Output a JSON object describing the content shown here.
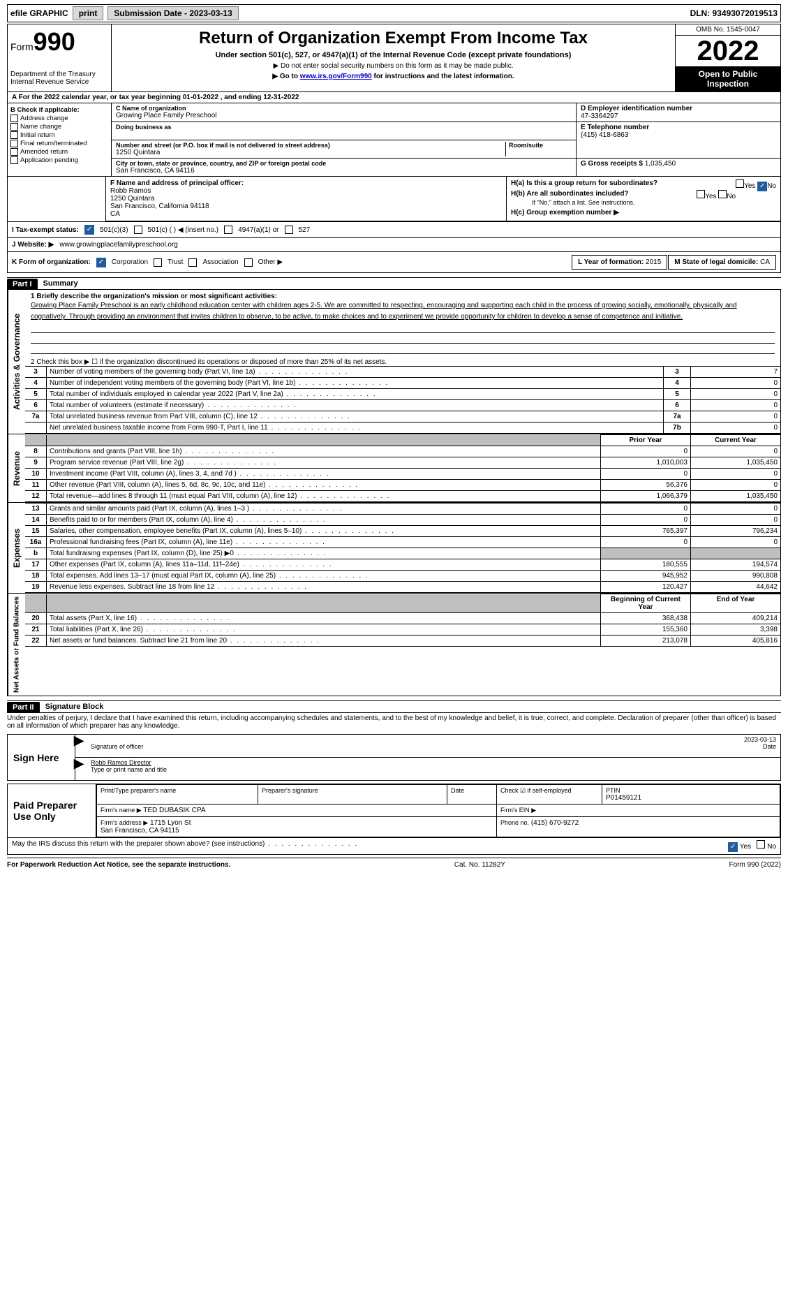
{
  "colors": {
    "button_bg": "#d9d9d9",
    "black": "#000000",
    "link": "#0000cc",
    "checked_blue": "#225c9d",
    "shade": "#bfbfbf"
  },
  "topbar": {
    "efile": "efile GRAPHIC",
    "print": "print",
    "submission_label": "Submission Date - 2023-03-13",
    "dln": "DLN: 93493072019513"
  },
  "header": {
    "form_prefix": "Form",
    "form_number": "990",
    "dept": "Department of the Treasury\nInternal Revenue Service",
    "title": "Return of Organization Exempt From Income Tax",
    "subtitle": "Under section 501(c), 527, or 4947(a)(1) of the Internal Revenue Code (except private foundations)",
    "note1": "▶ Do not enter social security numbers on this form as it may be made public.",
    "note2_pre": "▶ Go to ",
    "note2_link": "www.irs.gov/Form990",
    "note2_post": " for instructions and the latest information.",
    "omb": "OMB No. 1545-0047",
    "year": "2022",
    "open": "Open to Public Inspection"
  },
  "A": {
    "text": "A For the 2022 calendar year, or tax year beginning 01-01-2022   , and ending 12-31-2022"
  },
  "B": {
    "label": "B Check if applicable:",
    "items": [
      "Address change",
      "Name change",
      "Initial return",
      "Final return/terminated",
      "Amended return",
      "Application pending"
    ]
  },
  "C": {
    "name_lbl": "C Name of organization",
    "name": "Growing Place Family Preschool",
    "dba_lbl": "Doing business as",
    "dba": "",
    "addr_lbl": "Number and street (or P.O. box if mail is not delivered to street address)",
    "addr": "1250 Quintara",
    "room_lbl": "Room/suite",
    "city_lbl": "City or town, state or province, country, and ZIP or foreign postal code",
    "city": "San Francisco, CA  94116"
  },
  "D": {
    "lbl": "D Employer identification number",
    "val": "47-3364297"
  },
  "E": {
    "lbl": "E Telephone number",
    "val": "(415) 418-6863"
  },
  "G": {
    "lbl": "G Gross receipts $",
    "val": "1,035,450"
  },
  "F": {
    "lbl": "F  Name and address of principal officer:",
    "name": "Robb Ramos",
    "addr1": "1250 Quintara",
    "addr2": "San Francisco, California  94118",
    "addr3": "CA"
  },
  "H": {
    "a_lbl": "H(a)  Is this a group return for subordinates?",
    "a_no_checked": true,
    "b_lbl": "H(b)  Are all subordinates included?",
    "b_note": "If \"No,\" attach a list. See instructions.",
    "c_lbl": "H(c)  Group exemption number ▶"
  },
  "I": {
    "lbl": "I   Tax-exempt status:",
    "c3_checked": true,
    "opts": [
      "501(c)(3)",
      "501(c) (  ) ◀ (insert no.)",
      "4947(a)(1) or",
      "527"
    ]
  },
  "J": {
    "lbl": "J   Website: ▶",
    "val": "www.growingplacefamilypreschool.org"
  },
  "K": {
    "lbl": "K Form of organization:",
    "opts": [
      "Corporation",
      "Trust",
      "Association",
      "Other ▶"
    ],
    "corp_checked": true,
    "L_lbl": "L Year of formation: ",
    "L_val": "2015",
    "M_lbl": "M State of legal domicile: ",
    "M_val": "CA"
  },
  "partI": {
    "hdr": "Part I",
    "title": "Summary",
    "mission_lbl": "1  Briefly describe the organization's mission or most significant activities:",
    "mission": "Growing Place Family Preschool is an early childhood education center with children ages 2-5. We are committed to respecting, encouraging and supporting each child in the process of growing socially, emotionally, physically and cognatively. Through providing an environment that invites children to observe, to be active, to make choices and to experiment we provide opportunity for children to develop a sense of competence and initiative.",
    "line2": "2  Check this box ▶ ☐ if the organization discontinued its operations or disposed of more than 25% of its net assets.",
    "vert_gov": "Activities & Governance",
    "vert_rev": "Revenue",
    "vert_exp": "Expenses",
    "vert_net": "Net Assets or Fund Balances",
    "rows_gov": [
      {
        "n": "3",
        "d": "Number of voting members of the governing body (Part VI, line 1a)",
        "box": "3",
        "v": "7"
      },
      {
        "n": "4",
        "d": "Number of independent voting members of the governing body (Part VI, line 1b)",
        "box": "4",
        "v": "0"
      },
      {
        "n": "5",
        "d": "Total number of individuals employed in calendar year 2022 (Part V, line 2a)",
        "box": "5",
        "v": "0"
      },
      {
        "n": "6",
        "d": "Total number of volunteers (estimate if necessary)",
        "box": "6",
        "v": "0"
      },
      {
        "n": "7a",
        "d": "Total unrelated business revenue from Part VIII, column (C), line 12",
        "box": "7a",
        "v": "0"
      },
      {
        "n": "",
        "d": "Net unrelated business taxable income from Form 990-T, Part I, line 11",
        "box": "7b",
        "v": "0"
      }
    ],
    "hdr_prior": "Prior Year",
    "hdr_curr": "Current Year",
    "rows_rev": [
      {
        "n": "8",
        "d": "Contributions and grants (Part VIII, line 1h)",
        "p": "0",
        "c": "0"
      },
      {
        "n": "9",
        "d": "Program service revenue (Part VIII, line 2g)",
        "p": "1,010,003",
        "c": "1,035,450"
      },
      {
        "n": "10",
        "d": "Investment income (Part VIII, column (A), lines 3, 4, and 7d )",
        "p": "0",
        "c": "0"
      },
      {
        "n": "11",
        "d": "Other revenue (Part VIII, column (A), lines 5, 6d, 8c, 9c, 10c, and 11e)",
        "p": "56,376",
        "c": "0"
      },
      {
        "n": "12",
        "d": "Total revenue—add lines 8 through 11 (must equal Part VIII, column (A), line 12)",
        "p": "1,066,379",
        "c": "1,035,450"
      }
    ],
    "rows_exp": [
      {
        "n": "13",
        "d": "Grants and similar amounts paid (Part IX, column (A), lines 1–3 )",
        "p": "0",
        "c": "0"
      },
      {
        "n": "14",
        "d": "Benefits paid to or for members (Part IX, column (A), line 4)",
        "p": "0",
        "c": "0"
      },
      {
        "n": "15",
        "d": "Salaries, other compensation, employee benefits (Part IX, column (A), lines 5–10)",
        "p": "765,397",
        "c": "796,234"
      },
      {
        "n": "16a",
        "d": "Professional fundraising fees (Part IX, column (A), line 11e)",
        "p": "0",
        "c": "0"
      },
      {
        "n": "b",
        "d": "Total fundraising expenses (Part IX, column (D), line 25) ▶0",
        "p": "shade",
        "c": "shade"
      },
      {
        "n": "17",
        "d": "Other expenses (Part IX, column (A), lines 11a–11d, 11f–24e)",
        "p": "180,555",
        "c": "194,574"
      },
      {
        "n": "18",
        "d": "Total expenses. Add lines 13–17 (must equal Part IX, column (A), line 25)",
        "p": "945,952",
        "c": "990,808"
      },
      {
        "n": "19",
        "d": "Revenue less expenses. Subtract line 18 from line 12",
        "p": "120,427",
        "c": "44,642"
      }
    ],
    "hdr_beg": "Beginning of Current Year",
    "hdr_end": "End of Year",
    "rows_net": [
      {
        "n": "20",
        "d": "Total assets (Part X, line 16)",
        "p": "368,438",
        "c": "409,214"
      },
      {
        "n": "21",
        "d": "Total liabilities (Part X, line 26)",
        "p": "155,360",
        "c": "3,398"
      },
      {
        "n": "22",
        "d": "Net assets or fund balances. Subtract line 21 from line 20",
        "p": "213,078",
        "c": "405,816"
      }
    ]
  },
  "partII": {
    "hdr": "Part II",
    "title": "Signature Block",
    "decl": "Under penalties of perjury, I declare that I have examined this return, including accompanying schedules and statements, and to the best of my knowledge and belief, it is true, correct, and complete. Declaration of preparer (other than officer) is based on all information of which preparer has any knowledge.",
    "sign_here": "Sign Here",
    "sig_officer_lbl": "Signature of officer",
    "date_lbl": "Date",
    "sig_date": "2023-03-13",
    "officer_name": "Robb Ramos  Director",
    "officer_name_lbl": "Type or print name and title",
    "paid": "Paid Preparer Use Only",
    "prep_name_lbl": "Print/Type preparer's name",
    "prep_sig_lbl": "Preparer's signature",
    "prep_date_lbl": "Date",
    "check_self": "Check ☑ if self-employed",
    "ptin_lbl": "PTIN",
    "ptin": "P01459121",
    "firm_name_lbl": "Firm's name    ▶",
    "firm_name": "TED DUBASIK CPA",
    "firm_ein_lbl": "Firm's EIN ▶",
    "firm_addr_lbl": "Firm's address ▶",
    "firm_addr": "1715 Lyon St\nSan Francisco, CA  94115",
    "phone_lbl": "Phone no.",
    "phone": "(415) 670-9272",
    "may_irs": "May the IRS discuss this return with the preparer shown above? (see instructions)",
    "yes_checked": true
  },
  "footer": {
    "left": "For Paperwork Reduction Act Notice, see the separate instructions.",
    "mid": "Cat. No. 11282Y",
    "right": "Form 990 (2022)"
  }
}
